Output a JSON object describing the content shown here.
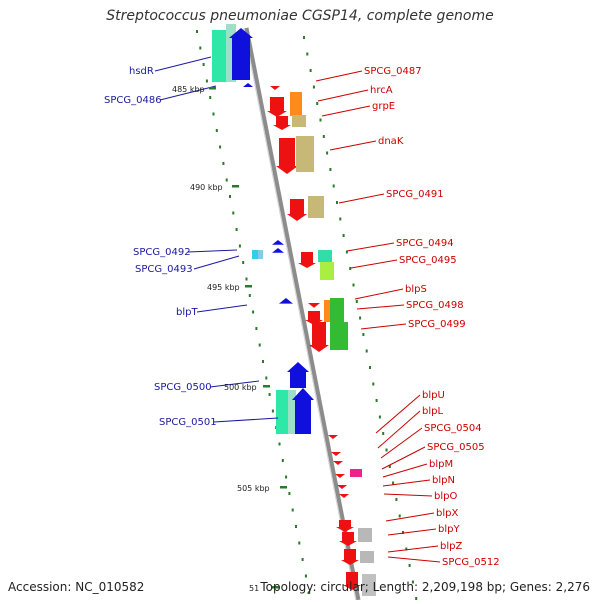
{
  "title": "Streptococcus pneumoniae CGSP14, complete genome",
  "accession": "Accession: NC_010582",
  "topology": "Topology: circular; Length: 2,209,198 bp; Genes: 2,276",
  "colors": {
    "backbone": "#8c8c8c",
    "left_label": "#1a1aa0",
    "right_label": "#cc0000",
    "tick": "#2a7a2a"
  },
  "scale_labels": [
    "485 kbp",
    "490 kbp",
    "495 kbp",
    "500 kbp",
    "505 kbp",
    "51"
  ],
  "left_labels": [
    "hsdR",
    "SPCG_0486",
    "SPCG_0492",
    "SPCG_0493",
    "blpT",
    "SPCG_0500",
    "SPCG_0501"
  ],
  "right_labels": [
    "SPCG_0487",
    "hrcA",
    "grpE",
    "dnaK",
    "SPCG_0491",
    "SPCG_0494",
    "SPCG_0495",
    "blpS",
    "SPCG_0498",
    "SPCG_0499",
    "blpU",
    "blpL",
    "SPCG_0504",
    "SPCG_0505",
    "blpM",
    "blpN",
    "blpO",
    "blpX",
    "blpY",
    "blpZ",
    "SPCG_0512"
  ]
}
